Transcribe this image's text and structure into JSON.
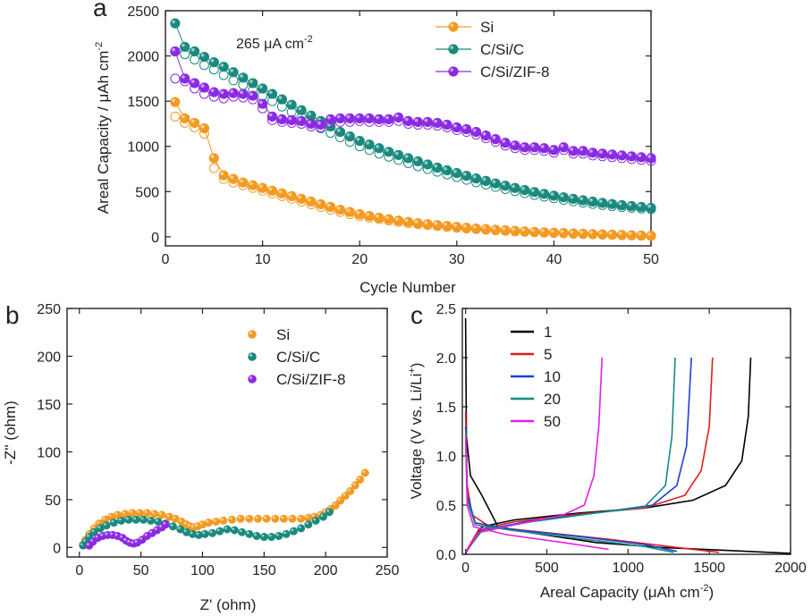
{
  "figure": {
    "panel_labels": [
      "a",
      "b",
      "c"
    ]
  },
  "chart_data": [
    {
      "panel": "a",
      "type": "scatter",
      "xlabel": "Cycle Number",
      "ylabel": "Areal Capacity / μAh cm",
      "ylabel_sup": "-2",
      "annotation": "265 μA cm",
      "annotation_sup": "-2",
      "xlim": [
        0,
        50
      ],
      "ylim": [
        -100,
        2500
      ],
      "xticks": [
        0,
        10,
        20,
        30,
        40,
        50
      ],
      "yticks": [
        0,
        500,
        1000,
        1500,
        2000,
        2500
      ],
      "legend_position": "top-right",
      "series": [
        {
          "name": "Si",
          "color": "#f39a22",
          "charge": [
            1490,
            1310,
            1260,
            1200,
            870,
            680,
            640,
            600,
            570,
            540,
            510,
            480,
            450,
            420,
            390,
            360,
            330,
            300,
            275,
            250,
            230,
            210,
            195,
            180,
            165,
            150,
            140,
            130,
            120,
            110,
            100,
            92,
            85,
            78,
            72,
            66,
            60,
            55,
            50,
            46,
            42,
            38,
            34,
            30,
            27,
            24,
            21,
            18,
            15,
            12
          ],
          "discharge": [
            1330,
            1260,
            1210,
            1140,
            760,
            640,
            600,
            570,
            540,
            510,
            480,
            450,
            420,
            390,
            360,
            330,
            300,
            275,
            250,
            230,
            210,
            195,
            180,
            165,
            150,
            140,
            130,
            120,
            110,
            100,
            92,
            85,
            78,
            72,
            66,
            60,
            55,
            50,
            46,
            42,
            38,
            34,
            30,
            27,
            24,
            21,
            18,
            15,
            12,
            10
          ]
        },
        {
          "name": "C/Si/C",
          "color": "#1a8a7e",
          "charge": [
            2360,
            2100,
            2050,
            1990,
            1930,
            1880,
            1820,
            1760,
            1700,
            1640,
            1580,
            1520,
            1460,
            1400,
            1340,
            1280,
            1220,
            1160,
            1110,
            1060,
            1020,
            980,
            940,
            905,
            870,
            835,
            800,
            765,
            735,
            705,
            675,
            645,
            618,
            590,
            565,
            540,
            517,
            495,
            475,
            455,
            437,
            420,
            404,
            389,
            375,
            362,
            350,
            340,
            330,
            320
          ],
          "discharge": [
            2050,
            2020,
            1960,
            1900,
            1850,
            1790,
            1730,
            1680,
            1620,
            1560,
            1500,
            1440,
            1380,
            1320,
            1260,
            1200,
            1150,
            1100,
            1050,
            1000,
            960,
            920,
            885,
            850,
            815,
            780,
            750,
            720,
            690,
            660,
            630,
            603,
            577,
            552,
            528,
            505,
            483,
            463,
            444,
            426,
            409,
            393,
            378,
            364,
            351,
            339,
            329,
            320,
            312,
            305
          ]
        },
        {
          "name": "C/Si/ZIF-8",
          "color": "#8a2be2",
          "charge": [
            2050,
            1750,
            1700,
            1650,
            1600,
            1580,
            1590,
            1580,
            1560,
            1470,
            1330,
            1300,
            1290,
            1280,
            1250,
            1240,
            1300,
            1310,
            1310,
            1310,
            1310,
            1300,
            1300,
            1320,
            1280,
            1270,
            1270,
            1260,
            1240,
            1210,
            1190,
            1160,
            1120,
            1080,
            1040,
            1010,
            990,
            990,
            980,
            960,
            990,
            950,
            950,
            930,
            920,
            910,
            900,
            890,
            880,
            870
          ],
          "discharge": [
            1750,
            1720,
            1640,
            1580,
            1550,
            1530,
            1550,
            1540,
            1520,
            1420,
            1290,
            1270,
            1260,
            1250,
            1220,
            1210,
            1260,
            1270,
            1270,
            1280,
            1270,
            1270,
            1270,
            1280,
            1250,
            1240,
            1240,
            1230,
            1210,
            1180,
            1160,
            1130,
            1090,
            1050,
            1010,
            980,
            960,
            960,
            950,
            930,
            960,
            920,
            920,
            900,
            890,
            880,
            870,
            860,
            850,
            840
          ]
        }
      ]
    },
    {
      "panel": "b",
      "type": "scatter",
      "xlabel": "Z' (ohm)",
      "ylabel": "-Z'' (ohm)",
      "xlim": [
        -10,
        250
      ],
      "ylim": [
        -10,
        250
      ],
      "xticks": [
        0,
        50,
        100,
        150,
        200,
        250
      ],
      "yticks": [
        0,
        50,
        100,
        150,
        200,
        250
      ],
      "legend_position": "top-right",
      "series": [
        {
          "name": "Si",
          "color": "#f39a22",
          "x": [
            3,
            5,
            8,
            12,
            16,
            21,
            26,
            31,
            37,
            43,
            49,
            55,
            61,
            67,
            73,
            78,
            83,
            87,
            90,
            93,
            96,
            100,
            105,
            111,
            117,
            124,
            131,
            138,
            145,
            152,
            159,
            166,
            173,
            180,
            186,
            191,
            196,
            200,
            204,
            208,
            212,
            216,
            220,
            224,
            228,
            232
          ],
          "y": [
            3,
            8,
            14,
            20,
            25,
            29,
            32,
            34,
            35,
            36,
            36,
            36,
            35,
            34,
            32,
            30,
            27,
            24,
            22,
            21,
            22,
            24,
            26,
            27,
            28,
            29,
            30,
            30,
            30,
            30,
            30,
            30,
            30,
            30,
            31,
            32,
            34,
            37,
            40,
            44,
            49,
            54,
            59,
            65,
            71,
            78
          ]
        },
        {
          "name": "C/Si/C",
          "color": "#1a8a7e",
          "x": [
            3,
            5,
            8,
            12,
            17,
            22,
            28,
            34,
            40,
            46,
            52,
            58,
            64,
            70,
            76,
            82,
            87,
            92,
            97,
            102,
            108,
            114,
            120,
            126,
            132,
            138,
            144,
            150,
            156,
            162,
            168,
            174,
            180,
            186,
            192,
            198,
            203
          ],
          "y": [
            2,
            6,
            11,
            16,
            20,
            23,
            26,
            28,
            29,
            29,
            29,
            28,
            27,
            25,
            22,
            19,
            16,
            14,
            13,
            14,
            15,
            17,
            19,
            18,
            16,
            14,
            12,
            11,
            11,
            12,
            14,
            17,
            20,
            24,
            28,
            32,
            37
          ]
        },
        {
          "name": "C/Si/ZIF-8",
          "color": "#8a2be2",
          "x": [
            8,
            11,
            15,
            19,
            23,
            27,
            31,
            35,
            38,
            41,
            44,
            47,
            51,
            55,
            59,
            63,
            67,
            70
          ],
          "y": [
            2,
            6,
            10,
            12,
            13,
            13,
            12,
            10,
            7,
            5,
            4,
            5,
            8,
            12,
            15,
            18,
            21,
            24
          ]
        }
      ]
    },
    {
      "panel": "c",
      "type": "line",
      "xlabel": "Areal Capacity (μAh cm",
      "xlabel_sup": "-2",
      "xlabel_tail": ")",
      "ylabel": "Voltage (V vs. Li/Li",
      "ylabel_sup": "+",
      "ylabel_tail": ")",
      "xlim": [
        -20,
        2000
      ],
      "ylim": [
        0,
        2.5
      ],
      "xticks": [
        0,
        500,
        1000,
        1500,
        2000
      ],
      "yticks": [
        0.0,
        0.5,
        1.0,
        1.5,
        2.0,
        2.5
      ],
      "legend_position": "top-left",
      "series": [
        {
          "name": "1",
          "color": "#000000",
          "discharge": [
            [
              0,
              2.4
            ],
            [
              5,
              1.2
            ],
            [
              30,
              0.8
            ],
            [
              100,
              0.6
            ],
            [
              200,
              0.28
            ],
            [
              400,
              0.22
            ],
            [
              800,
              0.12
            ],
            [
              1200,
              0.07
            ],
            [
              1600,
              0.04
            ],
            [
              2000,
              0.01
            ]
          ],
          "charge": [
            [
              0,
              0.01
            ],
            [
              100,
              0.28
            ],
            [
              300,
              0.35
            ],
            [
              700,
              0.42
            ],
            [
              1100,
              0.47
            ],
            [
              1400,
              0.55
            ],
            [
              1600,
              0.7
            ],
            [
              1700,
              0.95
            ],
            [
              1740,
              1.4
            ],
            [
              1755,
              2.0
            ]
          ]
        },
        {
          "name": "5",
          "color": "#e11d1d",
          "discharge": [
            [
              0,
              1.45
            ],
            [
              10,
              0.7
            ],
            [
              40,
              0.4
            ],
            [
              150,
              0.28
            ],
            [
              500,
              0.22
            ],
            [
              900,
              0.15
            ],
            [
              1300,
              0.07
            ],
            [
              1560,
              0.02
            ]
          ],
          "charge": [
            [
              0,
              0.02
            ],
            [
              80,
              0.25
            ],
            [
              300,
              0.33
            ],
            [
              700,
              0.41
            ],
            [
              1100,
              0.47
            ],
            [
              1350,
              0.6
            ],
            [
              1450,
              0.85
            ],
            [
              1500,
              1.3
            ],
            [
              1520,
              2.0
            ]
          ]
        },
        {
          "name": "10",
          "color": "#1f3fd6",
          "discharge": [
            [
              0,
              1.3
            ],
            [
              10,
              0.6
            ],
            [
              60,
              0.32
            ],
            [
              300,
              0.25
            ],
            [
              700,
              0.18
            ],
            [
              1100,
              0.1
            ],
            [
              1300,
              0.03
            ]
          ],
          "charge": [
            [
              0,
              0.02
            ],
            [
              90,
              0.24
            ],
            [
              400,
              0.34
            ],
            [
              800,
              0.42
            ],
            [
              1150,
              0.5
            ],
            [
              1300,
              0.7
            ],
            [
              1360,
              1.1
            ],
            [
              1390,
              2.0
            ]
          ]
        },
        {
          "name": "20",
          "color": "#178a82",
          "discharge": [
            [
              0,
              1.25
            ],
            [
              10,
              0.55
            ],
            [
              60,
              0.3
            ],
            [
              300,
              0.24
            ],
            [
              700,
              0.16
            ],
            [
              1100,
              0.08
            ],
            [
              1280,
              0.02
            ]
          ],
          "charge": [
            [
              0,
              0.02
            ],
            [
              100,
              0.24
            ],
            [
              400,
              0.33
            ],
            [
              800,
              0.42
            ],
            [
              1100,
              0.48
            ],
            [
              1230,
              0.7
            ],
            [
              1270,
              1.2
            ],
            [
              1290,
              2.0
            ]
          ]
        },
        {
          "name": "50",
          "color": "#e81ce8",
          "discharge": [
            [
              0,
              1.2
            ],
            [
              10,
              0.5
            ],
            [
              50,
              0.28
            ],
            [
              250,
              0.2
            ],
            [
              600,
              0.12
            ],
            [
              880,
              0.05
            ]
          ],
          "charge": [
            [
              0,
              0.02
            ],
            [
              80,
              0.22
            ],
            [
              300,
              0.3
            ],
            [
              600,
              0.4
            ],
            [
              730,
              0.5
            ],
            [
              790,
              0.8
            ],
            [
              820,
              1.3
            ],
            [
              840,
              2.0
            ]
          ]
        }
      ]
    }
  ]
}
